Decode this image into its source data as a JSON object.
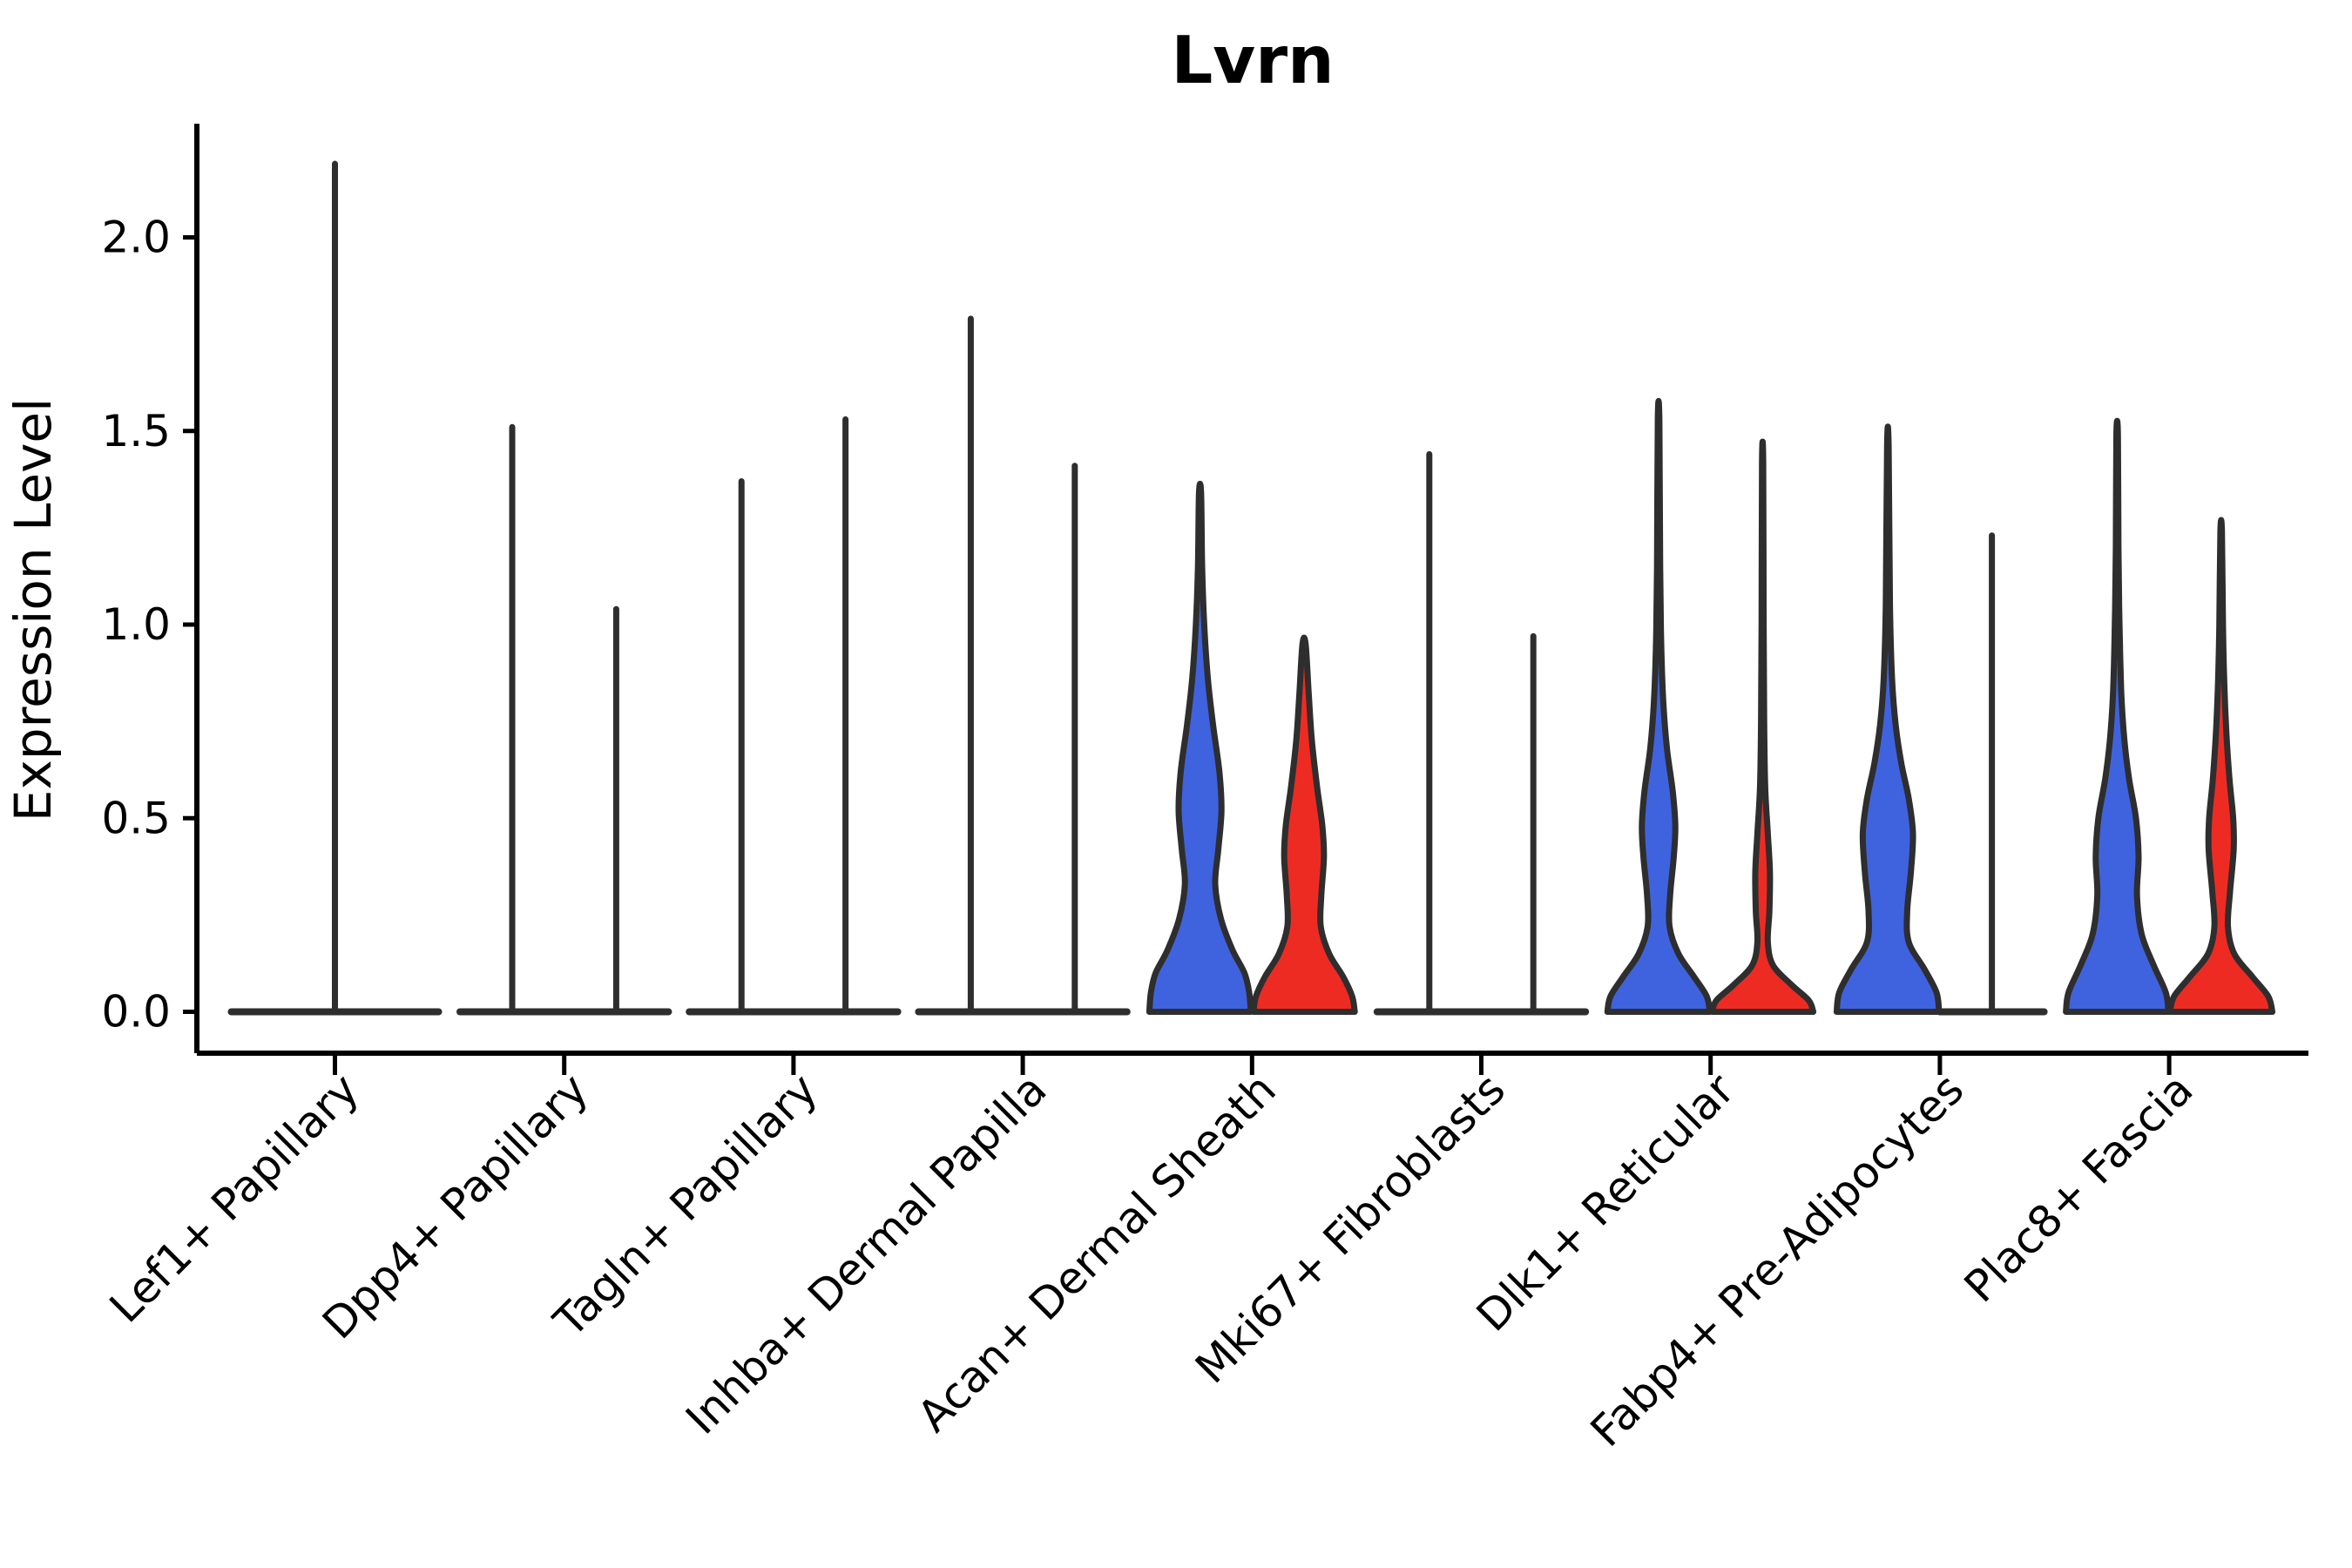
{
  "chart_data": {
    "type": "violin",
    "title": "Lvrn",
    "ylabel": "Expression Level",
    "xlabel": "",
    "ylim": [
      0,
      2.29
    ],
    "yticks": [
      "0.0",
      "0.5",
      "1.0",
      "1.5",
      "2.0"
    ],
    "ytick_values": [
      0.0,
      0.5,
      1.0,
      1.5,
      2.0
    ],
    "grid": false,
    "legend": "none",
    "categories": [
      "Lef1+ Papillary",
      "Dpp4+ Papillary",
      "Tagln+ Papillary",
      "Inhba+ Dermal Papilla",
      "Acan+ Dermal Sheath",
      "Mki67+ Fibroblasts",
      "Dlk1+ Reticular",
      "Fabp4+ Pre-Adipocytes",
      "Plac8+ Fascia"
    ],
    "series_colors": {
      "blue": "#3F63DF",
      "red": "#EE2B23",
      "outline": "#2E2E2E"
    },
    "violins": [
      {
        "cat": 0,
        "group": "single",
        "shape": "spike",
        "max": 2.19,
        "wide": true
      },
      {
        "cat": 1,
        "group": "blue",
        "shape": "spike",
        "max": 1.51
      },
      {
        "cat": 1,
        "group": "red",
        "shape": "spike",
        "max": 1.04
      },
      {
        "cat": 2,
        "group": "blue",
        "shape": "spike",
        "max": 1.37
      },
      {
        "cat": 2,
        "group": "red",
        "shape": "spike",
        "max": 1.53
      },
      {
        "cat": 3,
        "group": "blue",
        "shape": "spike",
        "max": 1.79
      },
      {
        "cat": 3,
        "group": "red",
        "shape": "spike",
        "max": 1.41
      },
      {
        "cat": 4,
        "group": "blue",
        "shape": "body",
        "max": 1.34,
        "profile": [
          [
            0,
            0.97
          ],
          [
            0.05,
            0.94
          ],
          [
            0.1,
            0.85
          ],
          [
            0.16,
            0.62
          ],
          [
            0.24,
            0.4
          ],
          [
            0.33,
            0.29
          ],
          [
            0.42,
            0.35
          ],
          [
            0.52,
            0.41
          ],
          [
            0.62,
            0.37
          ],
          [
            0.74,
            0.25
          ],
          [
            0.86,
            0.15
          ],
          [
            1.0,
            0.08
          ],
          [
            1.15,
            0.04
          ],
          [
            1.34,
            0.02
          ]
        ]
      },
      {
        "cat": 4,
        "group": "red",
        "shape": "body",
        "max": 0.95,
        "profile": [
          [
            0,
            0.97
          ],
          [
            0.04,
            0.92
          ],
          [
            0.09,
            0.75
          ],
          [
            0.15,
            0.48
          ],
          [
            0.22,
            0.32
          ],
          [
            0.3,
            0.33
          ],
          [
            0.4,
            0.38
          ],
          [
            0.48,
            0.35
          ],
          [
            0.58,
            0.25
          ],
          [
            0.7,
            0.15
          ],
          [
            0.82,
            0.09
          ],
          [
            0.95,
            0.03
          ]
        ]
      },
      {
        "cat": 5,
        "group": "blue",
        "shape": "spike",
        "max": 1.44
      },
      {
        "cat": 5,
        "group": "red",
        "shape": "spike",
        "max": 0.97
      },
      {
        "cat": 6,
        "group": "blue",
        "shape": "body",
        "max": 1.53,
        "profile": [
          [
            0,
            0.98
          ],
          [
            0.04,
            0.92
          ],
          [
            0.09,
            0.68
          ],
          [
            0.15,
            0.38
          ],
          [
            0.22,
            0.21
          ],
          [
            0.3,
            0.22
          ],
          [
            0.4,
            0.29
          ],
          [
            0.48,
            0.32
          ],
          [
            0.57,
            0.27
          ],
          [
            0.68,
            0.16
          ],
          [
            0.8,
            0.09
          ],
          [
            0.95,
            0.05
          ],
          [
            1.15,
            0.03
          ],
          [
            1.53,
            0.015
          ]
        ]
      },
      {
        "cat": 6,
        "group": "red",
        "shape": "body",
        "max": 1.42,
        "profile": [
          [
            0,
            0.97
          ],
          [
            0.03,
            0.88
          ],
          [
            0.07,
            0.55
          ],
          [
            0.12,
            0.2
          ],
          [
            0.18,
            0.1
          ],
          [
            0.26,
            0.13
          ],
          [
            0.36,
            0.14
          ],
          [
            0.46,
            0.1
          ],
          [
            0.58,
            0.05
          ],
          [
            0.75,
            0.03
          ],
          [
            1.0,
            0.02
          ],
          [
            1.42,
            0.012
          ]
        ]
      },
      {
        "cat": 7,
        "group": "blue",
        "shape": "body",
        "max": 1.46,
        "profile": [
          [
            0,
            0.98
          ],
          [
            0.05,
            0.93
          ],
          [
            0.11,
            0.7
          ],
          [
            0.18,
            0.4
          ],
          [
            0.26,
            0.37
          ],
          [
            0.36,
            0.44
          ],
          [
            0.46,
            0.48
          ],
          [
            0.55,
            0.4
          ],
          [
            0.64,
            0.26
          ],
          [
            0.74,
            0.15
          ],
          [
            0.86,
            0.08
          ],
          [
            1.05,
            0.04
          ],
          [
            1.46,
            0.015
          ]
        ]
      },
      {
        "cat": 7,
        "group": "red",
        "shape": "spike",
        "max": 1.23
      },
      {
        "cat": 8,
        "group": "blue",
        "shape": "body",
        "max": 1.49,
        "profile": [
          [
            0,
            0.98
          ],
          [
            0.05,
            0.93
          ],
          [
            0.12,
            0.7
          ],
          [
            0.2,
            0.47
          ],
          [
            0.3,
            0.38
          ],
          [
            0.4,
            0.41
          ],
          [
            0.5,
            0.36
          ],
          [
            0.6,
            0.23
          ],
          [
            0.7,
            0.14
          ],
          [
            0.82,
            0.08
          ],
          [
            1.0,
            0.045
          ],
          [
            1.2,
            0.025
          ],
          [
            1.49,
            0.015
          ]
        ]
      },
      {
        "cat": 8,
        "group": "red",
        "shape": "body",
        "max": 1.24,
        "profile": [
          [
            0,
            0.98
          ],
          [
            0.04,
            0.9
          ],
          [
            0.09,
            0.6
          ],
          [
            0.15,
            0.25
          ],
          [
            0.22,
            0.13
          ],
          [
            0.31,
            0.17
          ],
          [
            0.42,
            0.24
          ],
          [
            0.5,
            0.23
          ],
          [
            0.6,
            0.16
          ],
          [
            0.72,
            0.1
          ],
          [
            0.85,
            0.06
          ],
          [
            1.0,
            0.035
          ],
          [
            1.24,
            0.015
          ]
        ]
      }
    ]
  }
}
